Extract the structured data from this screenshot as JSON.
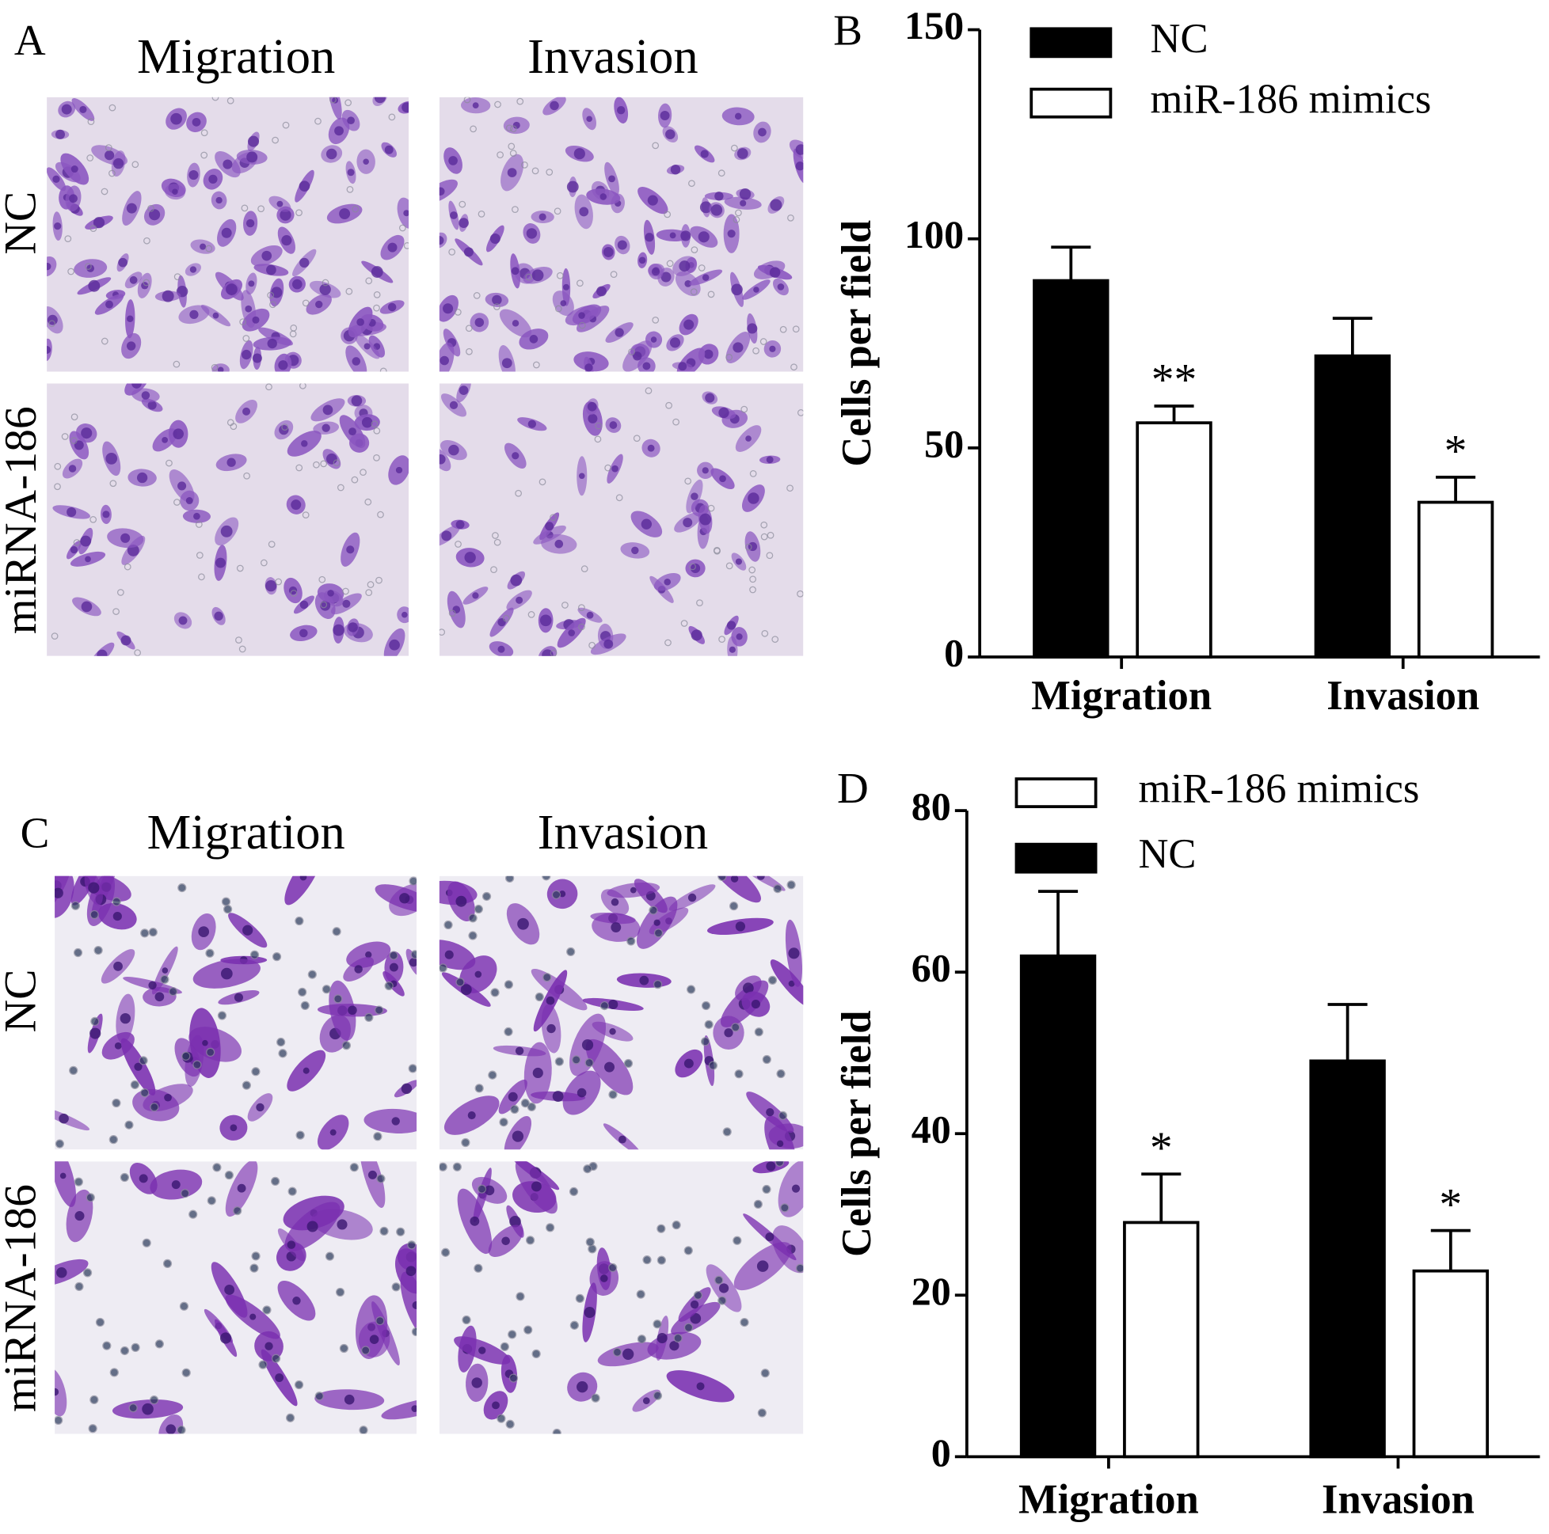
{
  "figure": {
    "panels": [
      {
        "label": "A",
        "columns": [
          "Migration",
          "Invasion"
        ],
        "rows": [
          "NC",
          "miRNA-186"
        ]
      },
      {
        "label": "C",
        "columns": [
          "Migration",
          "Invasion"
        ],
        "rows": [
          "NC",
          "miRNA-186"
        ]
      }
    ]
  },
  "chart_data": [
    {
      "type": "bar",
      "panel_label": "B",
      "y_label": "Cells per field",
      "categories": [
        "Migration",
        "Invasion"
      ],
      "series": [
        {
          "name": "NC",
          "color": "#000000",
          "values": [
            90,
            72
          ],
          "errors": [
            8,
            9
          ]
        },
        {
          "name": "miR-186 mimics",
          "color": "#ffffff",
          "values": [
            56,
            37
          ],
          "errors": [
            4,
            6
          ],
          "annotations": [
            "**",
            "*"
          ]
        }
      ],
      "ylim": [
        0,
        150
      ],
      "yticks": [
        0,
        50,
        100,
        150
      ],
      "legend_reversed": false
    },
    {
      "type": "bar",
      "panel_label": "D",
      "y_label": "Cells per field",
      "categories": [
        "Migration",
        "Invasion"
      ],
      "series": [
        {
          "name": "NC",
          "color": "#000000",
          "values": [
            62,
            49
          ],
          "errors": [
            8,
            7
          ]
        },
        {
          "name": "miR-186 mimics",
          "color": "#ffffff",
          "values": [
            29,
            23
          ],
          "errors": [
            6,
            5
          ],
          "annotations": [
            "*",
            "*"
          ]
        }
      ],
      "ylim": [
        0,
        80
      ],
      "yticks": [
        0,
        20,
        40,
        60,
        80
      ],
      "legend_reversed": true
    }
  ]
}
